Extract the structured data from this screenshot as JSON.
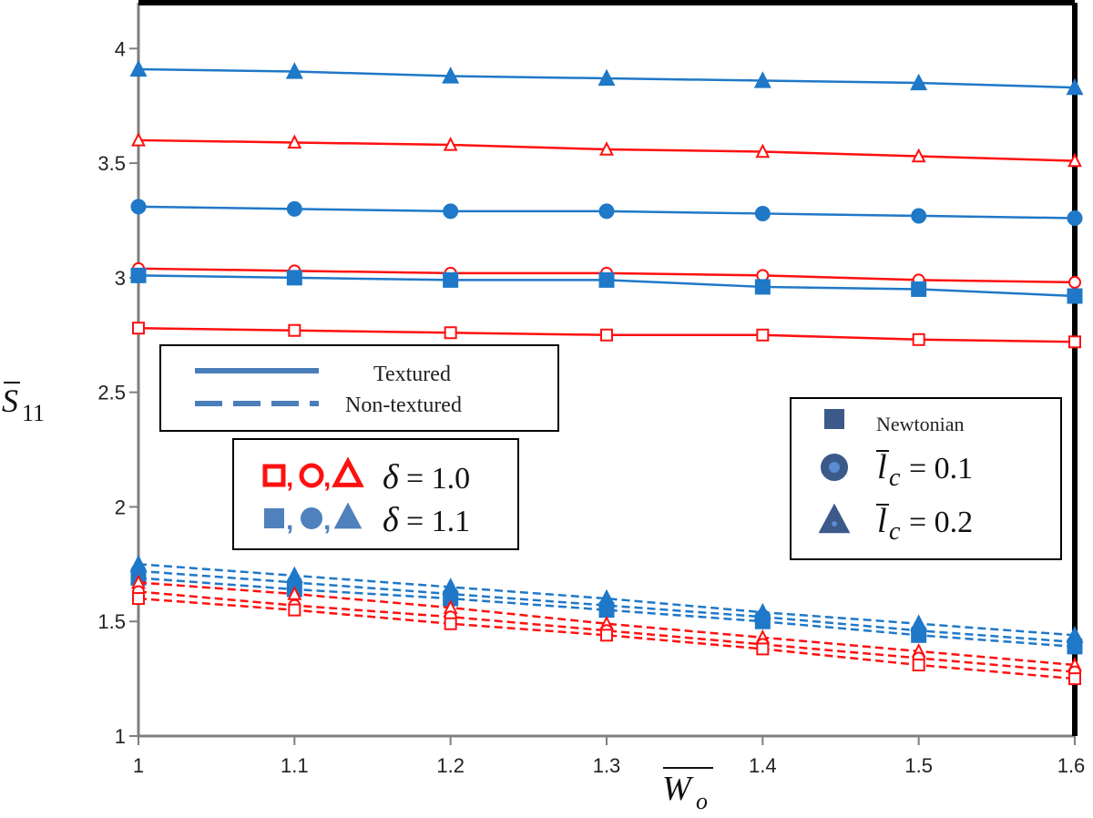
{
  "chart_data": {
    "type": "line",
    "title": "",
    "xlabel": "W̄o",
    "ylabel": "S̄11",
    "xlim": [
      1,
      1.6
    ],
    "ylim": [
      1,
      4.2
    ],
    "xticks": [
      "1",
      "1.1",
      "1.2",
      "1.3",
      "1.4",
      "1.5",
      "1.6"
    ],
    "yticks": [
      "1",
      "1.5",
      "2",
      "2.5",
      "3",
      "3.5",
      "4"
    ],
    "x": [
      1,
      1.1,
      1.2,
      1.3,
      1.4,
      1.5,
      1.6
    ],
    "series": [
      {
        "group": "textured",
        "delta": "1.1",
        "marker": "triangle",
        "filled": true,
        "color": "#1f78c8",
        "values": [
          3.91,
          3.9,
          3.88,
          3.87,
          3.86,
          3.85,
          3.83
        ]
      },
      {
        "group": "textured",
        "delta": "1.0",
        "marker": "triangle",
        "filled": false,
        "color": "#ff1010",
        "values": [
          3.6,
          3.59,
          3.58,
          3.56,
          3.55,
          3.53,
          3.51
        ]
      },
      {
        "group": "textured",
        "delta": "1.1",
        "marker": "circle",
        "filled": true,
        "color": "#1f78c8",
        "values": [
          3.31,
          3.3,
          3.29,
          3.29,
          3.28,
          3.27,
          3.26
        ]
      },
      {
        "group": "textured",
        "delta": "1.0",
        "marker": "circle",
        "filled": false,
        "color": "#ff1010",
        "values": [
          3.04,
          3.03,
          3.02,
          3.02,
          3.01,
          2.99,
          2.98
        ]
      },
      {
        "group": "textured",
        "delta": "1.1",
        "marker": "square",
        "filled": true,
        "color": "#1f78c8",
        "values": [
          3.01,
          3.0,
          2.99,
          2.99,
          2.96,
          2.95,
          2.92
        ]
      },
      {
        "group": "textured",
        "delta": "1.0",
        "marker": "square",
        "filled": false,
        "color": "#ff1010",
        "values": [
          2.78,
          2.77,
          2.76,
          2.75,
          2.75,
          2.73,
          2.72
        ]
      },
      {
        "group": "non-textured",
        "delta": "1.1",
        "marker": "triangle",
        "filled": true,
        "color": "#1f78c8",
        "values": [
          1.75,
          1.7,
          1.65,
          1.6,
          1.54,
          1.49,
          1.44
        ]
      },
      {
        "group": "non-textured",
        "delta": "1.1",
        "marker": "circle",
        "filled": true,
        "color": "#1f78c8",
        "values": [
          1.72,
          1.67,
          1.62,
          1.57,
          1.52,
          1.46,
          1.41
        ]
      },
      {
        "group": "non-textured",
        "delta": "1.1",
        "marker": "square",
        "filled": true,
        "color": "#1f78c8",
        "values": [
          1.69,
          1.64,
          1.6,
          1.55,
          1.5,
          1.44,
          1.39
        ]
      },
      {
        "group": "non-textured",
        "delta": "1.0",
        "marker": "triangle",
        "filled": false,
        "color": "#ff1010",
        "values": [
          1.67,
          1.62,
          1.56,
          1.49,
          1.43,
          1.37,
          1.31
        ]
      },
      {
        "group": "non-textured",
        "delta": "1.0",
        "marker": "circle",
        "filled": false,
        "color": "#ff1010",
        "values": [
          1.63,
          1.57,
          1.52,
          1.46,
          1.4,
          1.34,
          1.28
        ]
      },
      {
        "group": "non-textured",
        "delta": "1.0",
        "marker": "square",
        "filled": false,
        "color": "#ff1010",
        "values": [
          1.6,
          1.55,
          1.49,
          1.44,
          1.38,
          1.31,
          1.25
        ]
      }
    ],
    "legends": {
      "line_style": {
        "solid": "Textured",
        "dashed": "Non-textured"
      },
      "delta": [
        {
          "marker_colors": "#ff1010",
          "filled": false,
          "lhs": "δ",
          "rhs": "= 1.0"
        },
        {
          "marker_colors": "#4f81bd",
          "filled": true,
          "lhs": "δ",
          "rhs": "= 1.1"
        }
      ],
      "markers": [
        {
          "marker": "square",
          "label": "Newtonian"
        },
        {
          "marker": "circle",
          "lhs": "l̄",
          "sub": "c",
          "rhs": "= 0.1"
        },
        {
          "marker": "triangle",
          "lhs": "l̄",
          "sub": "c",
          "rhs": "= 0.2"
        }
      ]
    },
    "colors": {
      "blue": "#1f78c8",
      "red": "#ff1010",
      "legend_blue": "#4a7ebb",
      "legend_navy": "#3b5a8a"
    }
  }
}
